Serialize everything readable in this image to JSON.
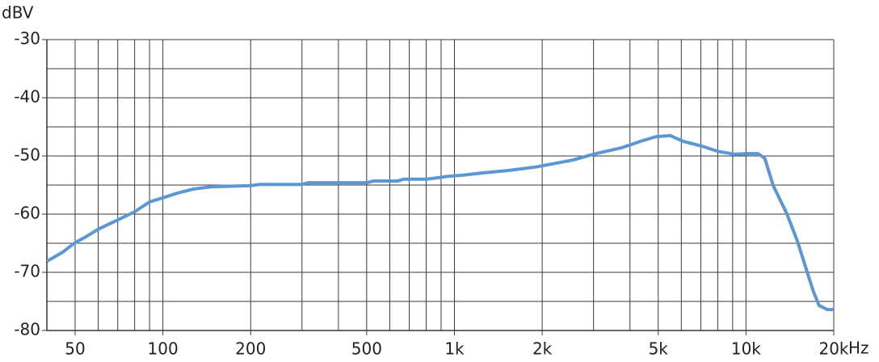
{
  "chart_data": {
    "type": "line",
    "y_label": "dBV",
    "x_label": "Hz",
    "xscale": "log",
    "xlim": [
      40,
      20000
    ],
    "ylim": [
      -80,
      -30
    ],
    "xticks": [
      50,
      100,
      200,
      500,
      {
        "value": 1000,
        "label": "1k"
      },
      {
        "value": 2000,
        "label": "2k"
      },
      {
        "value": 5000,
        "label": "5k"
      },
      {
        "value": 10000,
        "label": "10k"
      },
      {
        "value": 20000,
        "label": "20k"
      }
    ],
    "xgrid_minor": [
      60,
      70,
      80,
      90,
      300,
      400,
      600,
      700,
      800,
      900,
      3000,
      4000,
      6000,
      7000,
      8000,
      9000
    ],
    "yticks": [
      -30,
      -40,
      -50,
      -60,
      -70,
      -80
    ],
    "ygrid_minor": [
      -35,
      -45,
      -55,
      -65,
      -75
    ],
    "grid": true,
    "series": [
      {
        "color": "#5b97d2",
        "x": [
          40,
          43,
          45.4,
          50,
          54,
          60,
          70,
          80,
          90,
          100,
          112,
          127,
          147,
          200,
          215,
          300,
          315,
          500,
          530,
          640,
          670,
          800,
          860,
          950,
          1070,
          1260,
          1530,
          1900,
          2550,
          3000,
          3740,
          4400,
          4900,
          5500,
          6100,
          7050,
          8000,
          9100,
          10000,
          11000,
          11600,
          12400,
          13800,
          15000,
          16200,
          17000,
          17800,
          19000,
          20000
        ],
        "values": [
          -68.1,
          -67.2,
          -66.5,
          -64.9,
          -64,
          -62.6,
          -61,
          -59.6,
          -57.9,
          -57.2,
          -56.4,
          -55.7,
          -55.3,
          -55.1,
          -54.9,
          -54.9,
          -54.6,
          -54.6,
          -54.3,
          -54.3,
          -54,
          -54,
          -53.8,
          -53.5,
          -53.3,
          -52.9,
          -52.5,
          -51.9,
          -50.7,
          -49.7,
          -48.6,
          -47.4,
          -46.7,
          -46.5,
          -47.5,
          -48.3,
          -49.2,
          -49.7,
          -49.6,
          -49.6,
          -50.4,
          -55.1,
          -59.9,
          -64.6,
          -69.9,
          -73.2,
          -75.7,
          -76.4,
          -76.4
        ]
      }
    ]
  }
}
